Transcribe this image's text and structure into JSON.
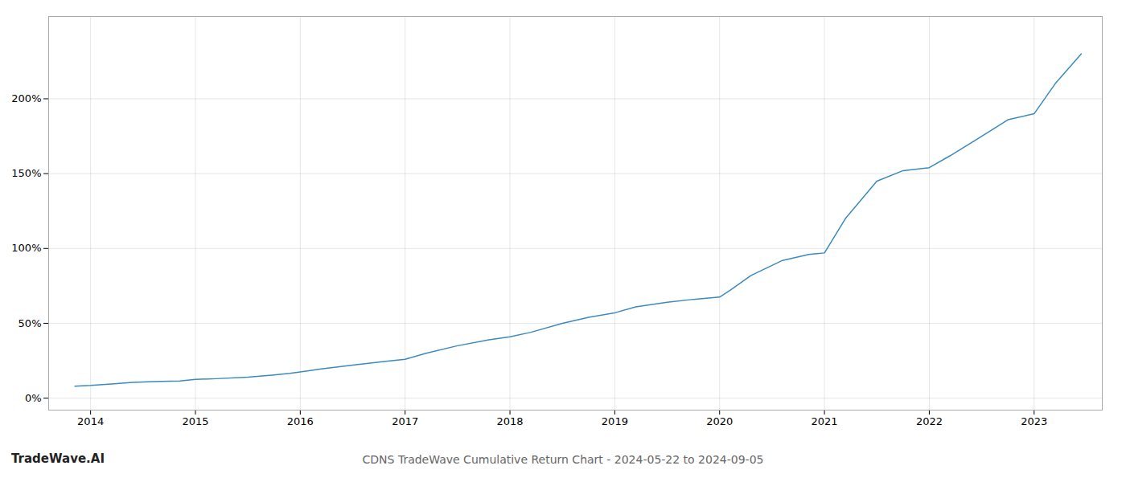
{
  "chart_data": {
    "type": "line",
    "title": "CDNS TradeWave Cumulative Return Chart - 2024-05-22 to 2024-09-05",
    "annotations": [
      "TradeWave.AI"
    ],
    "x": [
      2013.85,
      2014.0,
      2014.2,
      2014.4,
      2014.6,
      2014.85,
      2015.0,
      2015.2,
      2015.5,
      2015.75,
      2015.9,
      2016.0,
      2016.2,
      2016.5,
      2016.8,
      2017.0,
      2017.2,
      2017.5,
      2017.8,
      2018.0,
      2018.2,
      2018.5,
      2018.75,
      2019.0,
      2019.2,
      2019.5,
      2019.75,
      2020.0,
      2020.1,
      2020.3,
      2020.6,
      2020.85,
      2021.0,
      2021.2,
      2021.5,
      2021.75,
      2022.0,
      2022.2,
      2022.5,
      2022.75,
      2023.0,
      2023.2,
      2023.45
    ],
    "values": [
      8.0,
      8.5,
      9.5,
      10.5,
      11.0,
      11.5,
      12.5,
      13.0,
      14.0,
      15.5,
      16.5,
      17.5,
      19.5,
      22.0,
      24.5,
      26.0,
      30.0,
      35.0,
      39.0,
      41.0,
      44.0,
      50.0,
      54.0,
      57.0,
      61.0,
      64.0,
      66.0,
      67.5,
      72.0,
      82.0,
      92.0,
      96.0,
      97.0,
      120.0,
      145.0,
      152.0,
      154.0,
      162.0,
      175.0,
      186.0,
      190.0,
      210.0,
      230.0
    ],
    "color": "#3a8abf",
    "xlim": [
      2013.6,
      2023.65
    ],
    "xticks": [
      2014,
      2015,
      2016,
      2017,
      2018,
      2019,
      2020,
      2021,
      2022,
      2023
    ],
    "ylim": [
      -8,
      255
    ],
    "yticks": [
      {
        "value": 0,
        "label": "0%"
      },
      {
        "value": 50,
        "label": "50%"
      },
      {
        "value": 100,
        "label": "100%"
      },
      {
        "value": 150,
        "label": "150%"
      },
      {
        "value": 200,
        "label": "200%"
      }
    ],
    "grid": true
  }
}
